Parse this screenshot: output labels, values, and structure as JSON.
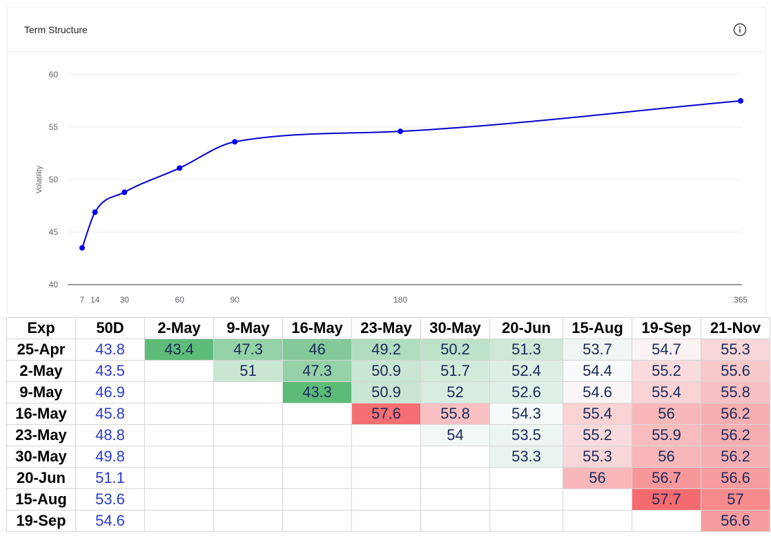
{
  "panel": {
    "title": "Term Structure",
    "info_icon": "info-icon"
  },
  "chart_data": {
    "type": "line",
    "title": "Term Structure",
    "xlabel": "",
    "ylabel": "Volatility",
    "x": [
      7,
      14,
      30,
      60,
      90,
      180,
      365
    ],
    "y": [
      43.5,
      46.9,
      48.8,
      51.1,
      53.6,
      54.6,
      57.5
    ],
    "x_ticks": [
      7,
      14,
      30,
      60,
      90,
      180,
      365
    ],
    "y_ticks": [
      40,
      45,
      50,
      55,
      60
    ],
    "ylim": [
      40,
      60
    ],
    "grid": true,
    "line_color": "#0000cc",
    "marker_color": "#0000ee"
  },
  "table": {
    "headers": [
      "Exp",
      "50D",
      "2-May",
      "9-May",
      "16-May",
      "23-May",
      "30-May",
      "20-Jun",
      "15-Aug",
      "19-Sep",
      "21-Nov"
    ],
    "rows": [
      {
        "exp": "25-Apr",
        "d50": "43.8",
        "cells": [
          "43.4",
          "47.3",
          "46",
          "49.2",
          "50.2",
          "51.3",
          "53.7",
          "54.7",
          "55.3"
        ]
      },
      {
        "exp": "2-May",
        "d50": "43.5",
        "cells": [
          "",
          "51",
          "47.3",
          "50.9",
          "51.7",
          "52.4",
          "54.4",
          "55.2",
          "55.6"
        ]
      },
      {
        "exp": "9-May",
        "d50": "46.9",
        "cells": [
          "",
          "",
          "43.3",
          "50.9",
          "52",
          "52.6",
          "54.6",
          "55.4",
          "55.8"
        ]
      },
      {
        "exp": "16-May",
        "d50": "45.8",
        "cells": [
          "",
          "",
          "",
          "57.6",
          "55.8",
          "54.3",
          "55.4",
          "56",
          "56.2"
        ]
      },
      {
        "exp": "23-May",
        "d50": "48.8",
        "cells": [
          "",
          "",
          "",
          "",
          "54",
          "53.5",
          "55.2",
          "55.9",
          "56.2"
        ]
      },
      {
        "exp": "30-May",
        "d50": "49.8",
        "cells": [
          "",
          "",
          "",
          "",
          "",
          "53.3",
          "55.3",
          "56",
          "56.2"
        ]
      },
      {
        "exp": "20-Jun",
        "d50": "51.1",
        "cells": [
          "",
          "",
          "",
          "",
          "",
          "",
          "56",
          "56.7",
          "56.6"
        ]
      },
      {
        "exp": "15-Aug",
        "d50": "53.6",
        "cells": [
          "",
          "",
          "",
          "",
          "",
          "",
          "",
          "57.7",
          "57"
        ]
      },
      {
        "exp": "19-Sep",
        "d50": "54.6",
        "cells": [
          "",
          "",
          "",
          "",
          "",
          "",
          "",
          "",
          "56.6"
        ]
      }
    ],
    "colors": {
      "green_strong": "#5dbb78",
      "white": "#fafbfc",
      "red_strong": "#f56a6e",
      "text_50d": "#2a3acb",
      "text_cell": "#1a2a5a"
    }
  }
}
